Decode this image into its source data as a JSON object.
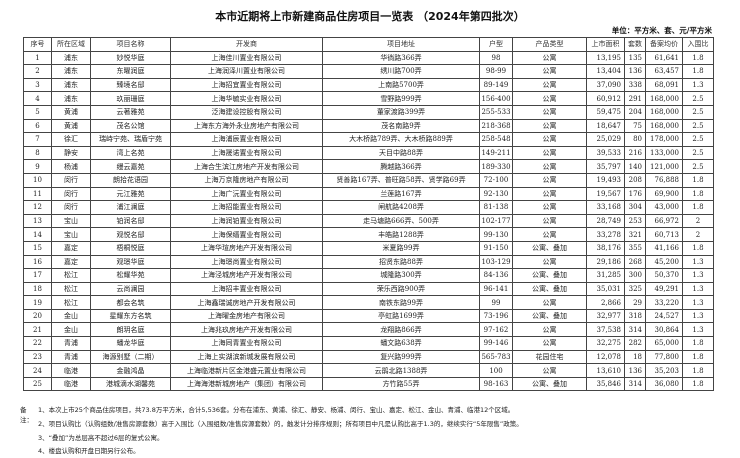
{
  "title": "本市近期将上市新建商品住房项目一览表 （2024年第四批次）",
  "unit": "单位：平方米、套、元/平方米",
  "columns": [
    "序号",
    "所在区域",
    "项目名称",
    "开发商",
    "项目地址",
    "户型",
    "产品类型",
    "上市面积",
    "套数",
    "备案均价",
    "入围比"
  ],
  "rows": [
    [
      "1",
      "浦东",
      "妙悦华庭",
      "上海佳川置业有限公司",
      "华徜路366弄",
      "98",
      "公寓",
      "13,195",
      "135",
      "61,641",
      "1.8"
    ],
    [
      "2",
      "浦东",
      "东曜润庭",
      "上海润泽川置业有限公司",
      "绣川路700弄",
      "98-99",
      "公寓",
      "13,404",
      "136",
      "63,457",
      "1.8"
    ],
    [
      "3",
      "浦东",
      "臻境名邸",
      "上海招宜置业有限公司",
      "上南路5700弄",
      "89-149",
      "公寓",
      "37,090",
      "338",
      "68,091",
      "1.3"
    ],
    [
      "4",
      "浦东",
      "玖丽珊庭",
      "上海华毓实业有限公司",
      "雪野路999弄",
      "156-400",
      "公寓",
      "60,912",
      "291",
      "168,000",
      "2.5"
    ],
    [
      "5",
      "黄浦",
      "云著雅苑",
      "泛海建设控股有限公司",
      "董家渡路399弄",
      "255-533",
      "公寓",
      "59,475",
      "204",
      "168,000",
      "2.5"
    ],
    [
      "6",
      "黄浦",
      "茂名公馆",
      "上海东方海外永业房地产有限公司",
      "茂名南路9弄",
      "218-368",
      "公寓",
      "18,647",
      "75",
      "168,000",
      "2.5"
    ],
    [
      "7",
      "徐汇",
      "瑞峙宁苑、瑞盾宁苑",
      "上海浦辰置业有限公司",
      "大木桥路789弄、大木桥路889弄",
      "258-548",
      "公寓",
      "25,029",
      "80",
      "178,000",
      "2.5"
    ],
    [
      "8",
      "静安",
      "湾上名苑",
      "上海晟诺置业有限公司",
      "天目中路88弄",
      "149-211",
      "公寓",
      "39,533",
      "216",
      "133,000",
      "2.5"
    ],
    [
      "9",
      "杨浦",
      "缦云嘉苑",
      "上海合生滨江房地产开发有限公司",
      "腾越路366弄",
      "189-330",
      "公寓",
      "35,797",
      "140",
      "121,000",
      "2.5"
    ],
    [
      "10",
      "闵行",
      "朗拾花语园",
      "上海万京隆房地产有限公司",
      "贤善路167弄、普旺路58弄、贤学路69弄",
      "72-100",
      "公寓",
      "19,493",
      "208",
      "76,888",
      "1.8"
    ],
    [
      "11",
      "闵行",
      "元江雅苑",
      "上海广沅置业有限公司",
      "兰莲路167弄",
      "92-130",
      "公寓",
      "19,567",
      "176",
      "69,900",
      "1.8"
    ],
    [
      "12",
      "闵行",
      "浦江澜庭",
      "上海招能置业有限公司",
      "闸航路4208弄",
      "81-138",
      "公寓",
      "33,168",
      "304",
      "43,000",
      "1.8"
    ],
    [
      "13",
      "宝山",
      "铂润名邸",
      "上海润铂置业有限公司",
      "走马塘路666弄、500弄",
      "102-177",
      "公寓",
      "28,749",
      "253",
      "66,972",
      "2"
    ],
    [
      "14",
      "宝山",
      "观悦名邸",
      "上海保缙置业有限公司",
      "丰皓路1288弄",
      "99-130",
      "公寓",
      "33,278",
      "321",
      "60,713",
      "2"
    ],
    [
      "15",
      "嘉定",
      "梧桐悦庭",
      "上海华瑄房地产开发有限公司",
      "米夏路99弄",
      "91-150",
      "公寓、叠加",
      "38,176",
      "355",
      "41,166",
      "1.8"
    ],
    [
      "16",
      "嘉定",
      "观璟华庭",
      "上海璟尚置业有限公司",
      "招贤东路88弄",
      "103-129",
      "公寓",
      "29,186",
      "268",
      "45,200",
      "1.3"
    ],
    [
      "17",
      "松江",
      "松耀华苑",
      "上海泾城房地产开发有限公司",
      "城隆路300弄",
      "84-136",
      "公寓、叠加",
      "31,285",
      "300",
      "50,370",
      "1.3"
    ],
    [
      "18",
      "松江",
      "云尚澜园",
      "上海招丰置业有限公司",
      "荣乐西路900弄",
      "96-141",
      "公寓、叠加",
      "35,031",
      "325",
      "49,291",
      "1.3"
    ],
    [
      "19",
      "松江",
      "都会名筑",
      "上海鑫瑞诚房地产开发有限公司",
      "南铁东路99弄",
      "99",
      "公寓",
      "2,866",
      "29",
      "33,220",
      "1.3"
    ],
    [
      "20",
      "金山",
      "星耀东方名筑",
      "上海曜金房地产有限公司",
      "亭虹路1699弄",
      "73-196",
      "公寓、叠加",
      "32,977",
      "318",
      "24,527",
      "1.3"
    ],
    [
      "21",
      "金山",
      "朗玥名庭",
      "上海兆玖房地产开发有限公司",
      "龙翔路866弄",
      "97-162",
      "公寓",
      "37,538",
      "314",
      "30,864",
      "1.3"
    ],
    [
      "22",
      "青浦",
      "蟠龙华庭",
      "上海同青置业有限公司",
      "蟠文路638弄",
      "99-146",
      "公寓",
      "32,275",
      "282",
      "65,000",
      "1.8"
    ],
    [
      "23",
      "青浦",
      "海源别墅（二期）",
      "上海上实湖滨新城发展有限公司",
      "复兴路999弄",
      "565-783",
      "花园住宅",
      "12,078",
      "18",
      "77,800",
      "1.8"
    ],
    [
      "24",
      "临港",
      "金融鸿晶",
      "上海临港新片区金港盛元置业有限公司",
      "云鹃北路1388弄",
      "100",
      "公寓",
      "13,610",
      "136",
      "35,203",
      "1.8"
    ],
    [
      "25",
      "临港",
      "港城滴水湖馨苑",
      "上海海港新城房地产（集团）有限公司",
      "方竹路55弄",
      "98-163",
      "公寓、叠加",
      "35,846",
      "314",
      "36,080",
      "1.8"
    ]
  ],
  "notes": {
    "label": "备注：",
    "items": [
      "1、本次上市25个商品住房项目，共73.8万平方米，合计5,536套。分布在浦东、黄浦、徐汇、静安、杨浦、闵行、宝山、嘉定、松江、金山、青浦、临港12个区域。",
      "2、项目认购比（认购组数/准售房源套数）高于入围比（入围组数/准售房源套数）的，触发计分排序规则；所有项目中凡是认购比高于1.3的，继续实行“5年限售”政策。",
      "3、“叠加”为总层高不超过6层的复式公寓。",
      "4、楼盘认购和开盘日期另行公布。"
    ]
  }
}
